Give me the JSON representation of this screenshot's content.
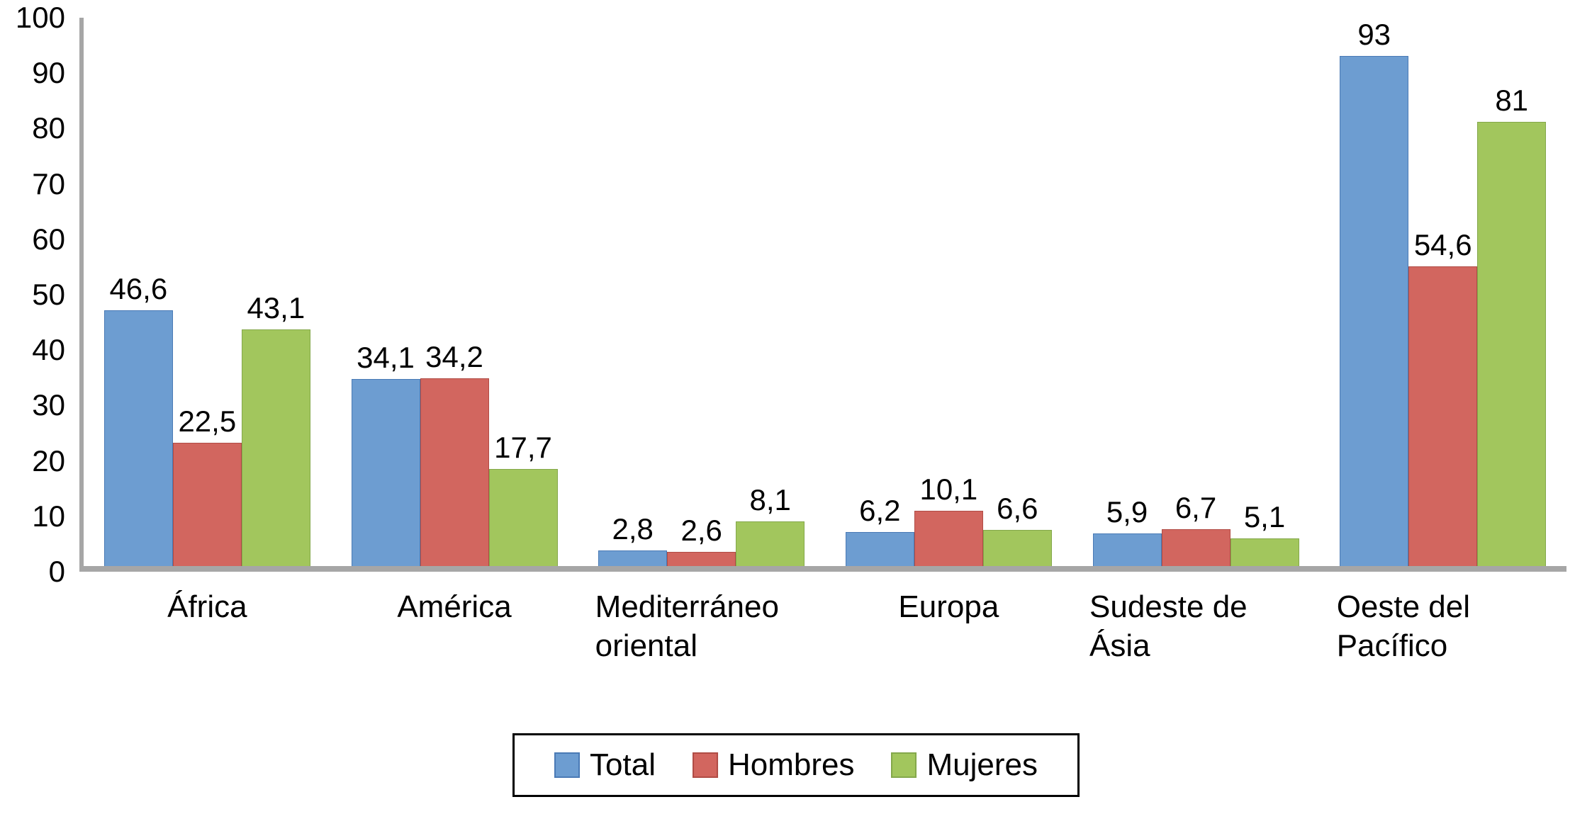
{
  "chart_data": {
    "type": "bar",
    "title": "",
    "xlabel": "",
    "ylabel": "",
    "grid": false,
    "legend_position": "bottom-center",
    "axis_color": "#a6a6a6",
    "ylim": [
      0,
      100
    ],
    "yticks": [
      0,
      10,
      20,
      30,
      40,
      50,
      60,
      70,
      80,
      90,
      100
    ],
    "categories": [
      "África",
      "América",
      "Mediterráneo oriental",
      "Europa",
      "Sudeste de Ásia",
      "Oeste del Pacífico"
    ],
    "series": [
      {
        "name": "Total",
        "color": "#6d9dd1",
        "border_color": "#4a7ab5",
        "values": [
          46.6,
          34.1,
          2.8,
          6.2,
          5.9,
          93
        ],
        "labels": [
          "46,6",
          "34,1",
          "2,8",
          "6,2",
          "5,9",
          "93"
        ]
      },
      {
        "name": "Hombres",
        "color": "#d2665f",
        "border_color": "#b04c45",
        "values": [
          22.5,
          34.2,
          2.6,
          10.1,
          6.7,
          54.6
        ],
        "labels": [
          "22,5",
          "34,2",
          "2,6",
          "10,1",
          "6,7",
          "54,6"
        ]
      },
      {
        "name": "Mujeres",
        "color": "#a2c65d",
        "border_color": "#84a84b",
        "values": [
          43.1,
          17.7,
          8.1,
          6.6,
          5.1,
          81
        ],
        "labels": [
          "43,1",
          "17,7",
          "8,1",
          "6,6",
          "5,1",
          "81"
        ]
      }
    ]
  }
}
